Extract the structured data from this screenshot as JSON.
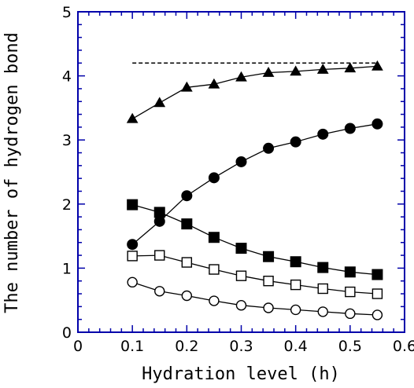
{
  "chart_data": {
    "type": "line",
    "title": "",
    "xlabel": "Hydration level (h)",
    "ylabel": "The number of hydrogen bond",
    "xlim": [
      0,
      0.6
    ],
    "ylim": [
      0,
      5
    ],
    "xticks": [
      "0",
      "0.1",
      "0.2",
      "0.3",
      "0.4",
      "0.5",
      "0.6"
    ],
    "yticks": [
      "0",
      "1",
      "2",
      "3",
      "4",
      "5"
    ],
    "grid": false,
    "legend": "none",
    "series": [
      {
        "marker": "triangle-filled",
        "x": [
          0.1,
          0.15,
          0.2,
          0.25,
          0.3,
          0.35,
          0.4,
          0.45,
          0.5,
          0.55
        ],
        "y": [
          3.33,
          3.58,
          3.82,
          3.87,
          3.98,
          4.05,
          4.07,
          4.1,
          4.12,
          4.15
        ]
      },
      {
        "marker": "circle-filled",
        "x": [
          0.1,
          0.15,
          0.2,
          0.25,
          0.3,
          0.35,
          0.4,
          0.45,
          0.5,
          0.55
        ],
        "y": [
          1.37,
          1.73,
          2.13,
          2.41,
          2.66,
          2.87,
          2.97,
          3.09,
          3.18,
          3.25
        ]
      },
      {
        "marker": "square-filled",
        "x": [
          0.1,
          0.15,
          0.2,
          0.25,
          0.3,
          0.35,
          0.4,
          0.45,
          0.5,
          0.55
        ],
        "y": [
          1.99,
          1.87,
          1.69,
          1.48,
          1.31,
          1.18,
          1.1,
          1.01,
          0.94,
          0.9
        ]
      },
      {
        "marker": "square-open",
        "x": [
          0.1,
          0.15,
          0.2,
          0.25,
          0.3,
          0.35,
          0.4,
          0.45,
          0.5,
          0.55
        ],
        "y": [
          1.19,
          1.2,
          1.09,
          0.98,
          0.88,
          0.8,
          0.74,
          0.68,
          0.63,
          0.6
        ]
      },
      {
        "marker": "circle-open",
        "x": [
          0.1,
          0.15,
          0.2,
          0.25,
          0.3,
          0.35,
          0.4,
          0.45,
          0.5,
          0.55
        ],
        "y": [
          0.78,
          0.64,
          0.57,
          0.49,
          0.42,
          0.38,
          0.35,
          0.32,
          0.29,
          0.27
        ]
      }
    ],
    "reference_line": {
      "style": "dashed",
      "y": 4.2,
      "x": [
        0.1,
        0.55
      ]
    },
    "colors": {
      "axis": "#0000aa",
      "data": "#000000",
      "background": "#ffffff"
    }
  }
}
